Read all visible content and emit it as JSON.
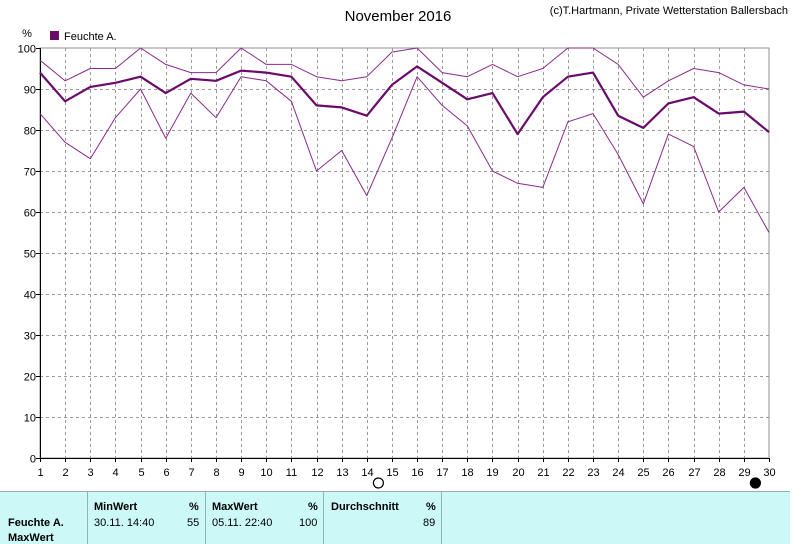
{
  "title": "November 2016",
  "copyright": "(c)T.Hartmann, Private Wetterstation Ballersbach",
  "legend": {
    "label": "Feuchte A.",
    "color": "#6a0a6a"
  },
  "y_unit": "%",
  "chart_data": {
    "type": "line",
    "title": "November 2016",
    "ylabel": "%",
    "xlabel": "",
    "ylim": [
      0,
      100
    ],
    "grid": true,
    "legend_position": "top-left",
    "x": [
      1,
      2,
      3,
      4,
      5,
      6,
      7,
      8,
      9,
      10,
      11,
      12,
      13,
      14,
      15,
      16,
      17,
      18,
      19,
      20,
      21,
      22,
      23,
      24,
      25,
      26,
      27,
      28,
      29,
      30
    ],
    "yticks": [
      0,
      10,
      20,
      30,
      40,
      50,
      60,
      70,
      80,
      90,
      100
    ],
    "series": [
      {
        "name": "Feuchte A.",
        "role": "mean",
        "color": "#6a0a6a",
        "values": [
          94,
          87,
          90.5,
          91.5,
          93,
          89,
          92.5,
          92,
          94.5,
          94,
          93,
          86,
          85.5,
          83.5,
          91,
          95.5,
          91.5,
          87.5,
          89,
          79,
          88,
          93,
          94,
          83.5,
          80.5,
          86.5,
          88,
          84,
          84.5,
          79.5
        ]
      },
      {
        "role": "max",
        "color": "#8a2a8a",
        "values": [
          97,
          92,
          95,
          95,
          100,
          96,
          94,
          94,
          100,
          96,
          96,
          93,
          92,
          93,
          99,
          100,
          94,
          93,
          96,
          93,
          95,
          100,
          100,
          96,
          88,
          92,
          95,
          94,
          91,
          90
        ]
      },
      {
        "role": "min",
        "color": "#8a2a8a",
        "values": [
          84,
          77,
          73,
          83,
          90,
          78,
          89,
          83,
          93,
          92,
          87,
          70,
          75,
          64,
          78,
          93,
          86,
          81,
          70,
          67,
          66,
          82,
          84,
          74,
          62,
          79,
          76,
          60,
          66,
          55
        ]
      }
    ],
    "moon_markers": [
      {
        "day": 14,
        "phase": "full"
      },
      {
        "day": 29,
        "phase": "new"
      }
    ]
  },
  "stats": {
    "row_label_1": "Feuchte A.",
    "row_label_2": "MaxWert",
    "min_header": "MinWert",
    "min_unit": "%",
    "min_time": "30.11.  14:40",
    "min_value": "55",
    "max_header": "MaxWert",
    "max_unit": "%",
    "max_time": "05.11.  22:40",
    "max_value": "100",
    "avg_header": "Durchschnitt",
    "avg_unit": "%",
    "avg_value": "89"
  }
}
